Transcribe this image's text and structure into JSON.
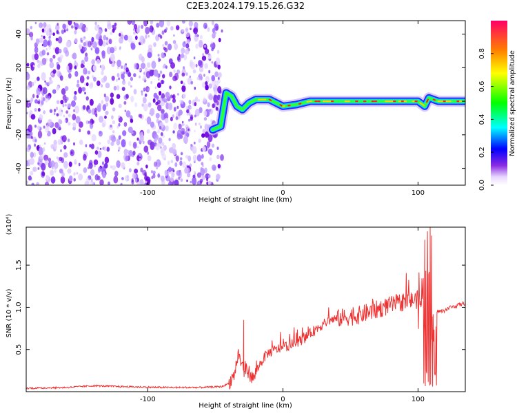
{
  "title": "C2E3.2024.179.15.26.G32",
  "chart_data": [
    {
      "type": "heatmap",
      "xlabel": "Height of straight line (km)",
      "ylabel": "Frequency (Hz)",
      "xlim": [
        -190,
        135
      ],
      "ylim": [
        -50,
        48
      ],
      "xticks": [
        -100,
        0,
        100
      ],
      "yticks": [
        -40,
        -20,
        0,
        20,
        40
      ],
      "colorbar": {
        "label": "Normalized spectral amplitude",
        "range": [
          0,
          1
        ],
        "ticks": [
          "0.0",
          "0.2",
          "0.4",
          "0.6",
          "0.8"
        ]
      },
      "noise_region": {
        "x": [
          -190,
          -45
        ],
        "y": [
          -50,
          48
        ]
      },
      "ridge": [
        {
          "x": -52,
          "y": -17
        },
        {
          "x": -46,
          "y": -15
        },
        {
          "x": -42,
          "y": 5
        },
        {
          "x": -38,
          "y": 3
        },
        {
          "x": -34,
          "y": -3
        },
        {
          "x": -30,
          "y": -5
        },
        {
          "x": -25,
          "y": -1
        },
        {
          "x": -20,
          "y": 1
        },
        {
          "x": -10,
          "y": 1
        },
        {
          "x": 0,
          "y": -3
        },
        {
          "x": 10,
          "y": -2
        },
        {
          "x": 20,
          "y": 0
        },
        {
          "x": 40,
          "y": 0
        },
        {
          "x": 60,
          "y": 0
        },
        {
          "x": 80,
          "y": 0
        },
        {
          "x": 100,
          "y": 0
        },
        {
          "x": 105,
          "y": -3
        },
        {
          "x": 108,
          "y": 2
        },
        {
          "x": 115,
          "y": 0
        },
        {
          "x": 135,
          "y": 0
        }
      ]
    },
    {
      "type": "line",
      "xlabel": "Height of straight line (km)",
      "ylabel": "SNR (10 * v/v)",
      "y_multiplier": "(x10⁴)",
      "xlim": [
        -190,
        135
      ],
      "ylim": [
        0,
        1.95
      ],
      "xticks": [
        -100,
        0,
        100
      ],
      "yticks": [
        "0.5",
        "1.0",
        "1.5"
      ],
      "color": "#ee3333",
      "envelope": [
        {
          "x": -190,
          "y": 0.04
        },
        {
          "x": -160,
          "y": 0.05
        },
        {
          "x": -140,
          "y": 0.07
        },
        {
          "x": -120,
          "y": 0.06
        },
        {
          "x": -90,
          "y": 0.05
        },
        {
          "x": -60,
          "y": 0.05
        },
        {
          "x": -45,
          "y": 0.06
        },
        {
          "x": -40,
          "y": 0.1
        },
        {
          "x": -36,
          "y": 0.2
        },
        {
          "x": -33,
          "y": 0.45
        },
        {
          "x": -30,
          "y": 0.3
        },
        {
          "x": -26,
          "y": 0.25
        },
        {
          "x": -22,
          "y": 0.15
        },
        {
          "x": -18,
          "y": 0.3
        },
        {
          "x": -12,
          "y": 0.45
        },
        {
          "x": -5,
          "y": 0.5
        },
        {
          "x": 5,
          "y": 0.55
        },
        {
          "x": 15,
          "y": 0.62
        },
        {
          "x": 25,
          "y": 0.75
        },
        {
          "x": 35,
          "y": 0.85
        },
        {
          "x": 45,
          "y": 0.88
        },
        {
          "x": 55,
          "y": 0.9
        },
        {
          "x": 65,
          "y": 0.95
        },
        {
          "x": 75,
          "y": 1.0
        },
        {
          "x": 85,
          "y": 1.05
        },
        {
          "x": 95,
          "y": 1.08
        },
        {
          "x": 103,
          "y": 1.1
        },
        {
          "x": 108,
          "y": 1.1
        },
        {
          "x": 112,
          "y": 0.95
        },
        {
          "x": 118,
          "y": 0.95
        },
        {
          "x": 124,
          "y": 1.0
        },
        {
          "x": 135,
          "y": 1.05
        }
      ],
      "spikes": [
        {
          "x": -29,
          "y": 0.85
        },
        {
          "x": 105,
          "y": 1.8
        },
        {
          "x": 107,
          "y": 1.9
        },
        {
          "x": 109,
          "y": 1.95
        },
        {
          "x": 110,
          "y": 1.85
        }
      ]
    }
  ]
}
